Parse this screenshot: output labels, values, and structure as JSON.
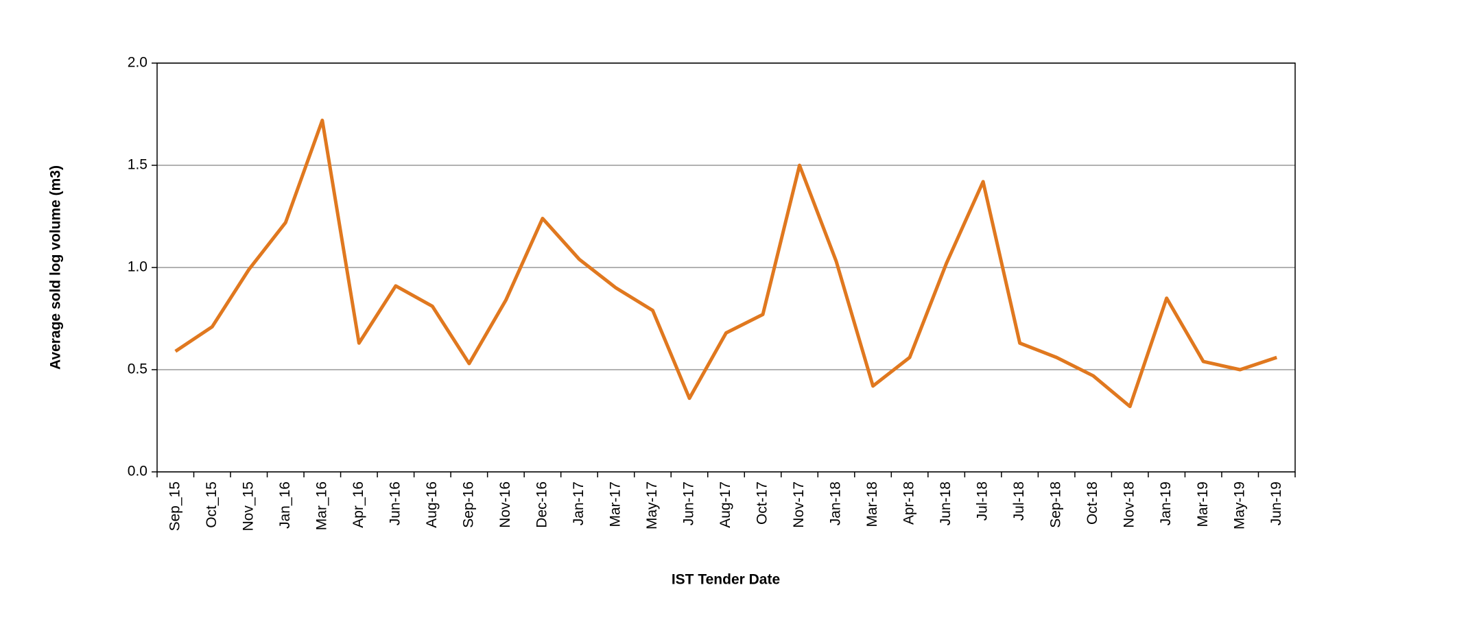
{
  "chart_data": {
    "type": "line",
    "x_label": "IST Tender Date",
    "y_label": "Average sold log volume (m3)",
    "categories": [
      "Sep_15",
      "Oct_15",
      "Nov_15",
      "Jan_16",
      "Mar_16",
      "Apr_16",
      "Jun-16",
      "Aug-16",
      "Sep-16",
      "Nov-16",
      "Dec-16",
      "Jan-17",
      "Mar-17",
      "May-17",
      "Jun-17",
      "Aug-17",
      "Oct-17",
      "Nov-17",
      "Jan-18",
      "Mar-18",
      "Apr-18",
      "Jun-18",
      "Jul-18",
      "Jul-18",
      "Sep-18",
      "Oct-18",
      "Nov-18",
      "Jan-19",
      "Mar-19",
      "May-19",
      "Jun-19"
    ],
    "values": [
      0.59,
      0.71,
      0.99,
      1.22,
      1.72,
      0.63,
      0.91,
      0.81,
      0.53,
      0.84,
      1.24,
      1.04,
      0.9,
      0.79,
      0.36,
      0.68,
      0.77,
      1.5,
      1.03,
      0.42,
      0.56,
      1.02,
      1.42,
      0.63,
      0.56,
      0.47,
      0.32,
      0.85,
      0.54,
      0.5,
      0.56
    ],
    "color": "#e0781f",
    "ylim": [
      0,
      2
    ],
    "yticks": [
      {
        "value": 0,
        "label": "0.0"
      },
      0.5,
      {
        "value": 1,
        "label": "1.0"
      },
      1.5,
      {
        "value": 2,
        "label": "2.0"
      }
    ],
    "grid": true
  }
}
